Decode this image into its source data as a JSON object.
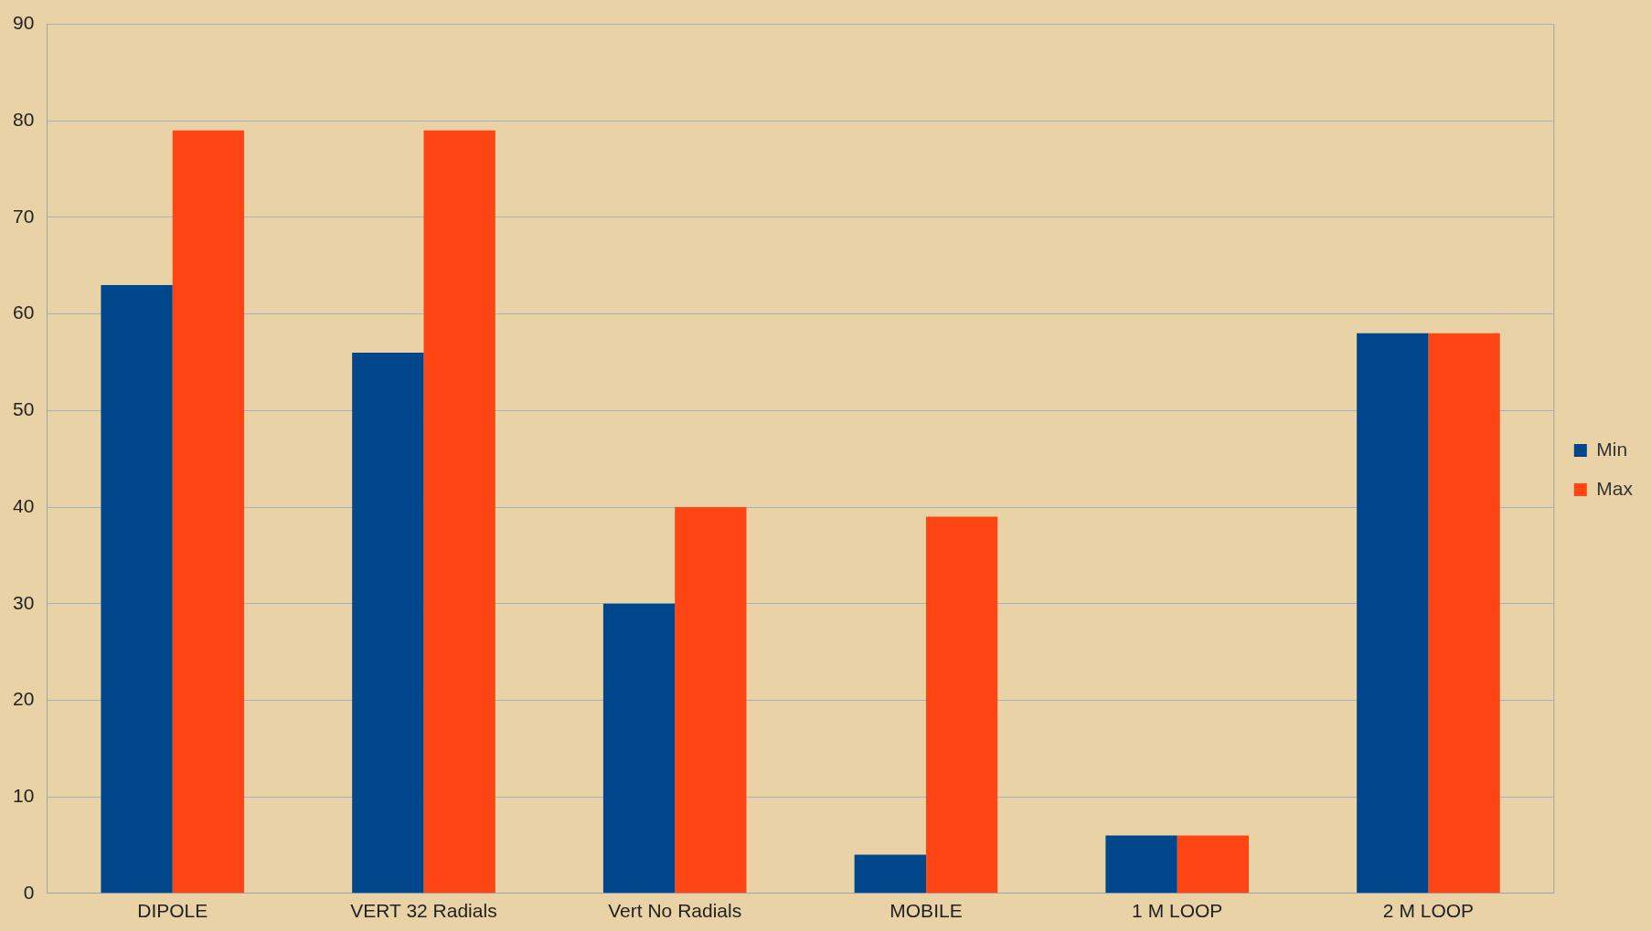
{
  "chart_data": {
    "type": "bar",
    "categories": [
      "DIPOLE",
      "VERT 32 Radials",
      "Vert No Radials",
      "MOBILE",
      "1 M LOOP",
      "2 M LOOP"
    ],
    "series": [
      {
        "name": "Min",
        "color": "#00468a",
        "values": [
          63,
          56,
          30,
          4,
          6,
          58
        ]
      },
      {
        "name": "Max",
        "color": "#ff4513",
        "values": [
          79,
          79,
          40,
          39,
          6,
          58
        ]
      }
    ],
    "ylim": [
      0,
      90
    ],
    "yticks": [
      0,
      10,
      20,
      30,
      40,
      50,
      60,
      70,
      80,
      90
    ],
    "grid": "y",
    "legend": "right"
  }
}
